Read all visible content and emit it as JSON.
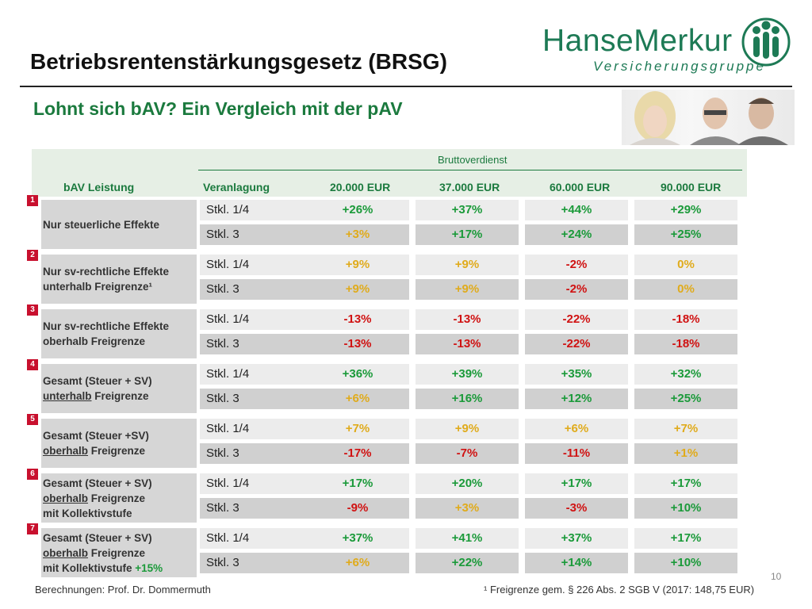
{
  "header": {
    "title": "Betriebsrentenstärkungsgesetz (BRSG)",
    "subtitle": "Lohnt sich bAV? Ein Vergleich mit der pAV",
    "logo": {
      "name": "HanseMerkur",
      "tagline": "Versicherungsgruppe",
      "color": "#1d7a55"
    }
  },
  "table": {
    "super_header": "Bruttoverdienst",
    "col_leistung": "bAV Leistung",
    "col_veranlagung": "Veranlagung",
    "salary_cols": [
      "20.000 EUR",
      "37.000 EUR",
      "60.000 EUR",
      "90.000 EUR"
    ],
    "groups": [
      {
        "num": "1",
        "label_parts": [
          {
            "t": "Nur steuerliche Effekte",
            "u": false
          }
        ],
        "rows": [
          {
            "stkl": "Stkl. 1/4",
            "values": [
              "+26%",
              "+37%",
              "+44%",
              "+29%"
            ],
            "colors": [
              "green",
              "green",
              "green",
              "green"
            ]
          },
          {
            "stkl": "Stkl. 3",
            "values": [
              "+3%",
              "+17%",
              "+24%",
              "+25%"
            ],
            "colors": [
              "yellow",
              "green",
              "green",
              "green"
            ]
          }
        ]
      },
      {
        "num": "2",
        "label_lines": [
          "Nur sv-rechtliche Effekte",
          "unterhalb Freigrenze¹"
        ],
        "rows": [
          {
            "stkl": "Stkl. 1/4",
            "values": [
              "+9%",
              "+9%",
              "-2%",
              "0%"
            ],
            "colors": [
              "yellow",
              "yellow",
              "red",
              "yellow"
            ]
          },
          {
            "stkl": "Stkl. 3",
            "values": [
              "+9%",
              "+9%",
              "-2%",
              "0%"
            ],
            "colors": [
              "yellow",
              "yellow",
              "red",
              "yellow"
            ]
          }
        ]
      },
      {
        "num": "3",
        "label_lines": [
          "Nur sv-rechtliche Effekte",
          "oberhalb Freigrenze"
        ],
        "rows": [
          {
            "stkl": "Stkl. 1/4",
            "values": [
              "-13%",
              "-13%",
              "-22%",
              "-18%"
            ],
            "colors": [
              "red",
              "red",
              "red",
              "red"
            ]
          },
          {
            "stkl": "Stkl. 3",
            "values": [
              "-13%",
              "-13%",
              "-22%",
              "-18%"
            ],
            "colors": [
              "red",
              "red",
              "red",
              "red"
            ]
          }
        ]
      },
      {
        "num": "4",
        "label_lines": [
          "Gesamt (Steuer + SV)",
          "unterhalb",
          "Freigrenze"
        ],
        "rows": [
          {
            "stkl": "Stkl. 1/4",
            "values": [
              "+36%",
              "+39%",
              "+35%",
              "+32%"
            ],
            "colors": [
              "green",
              "green",
              "green",
              "green"
            ]
          },
          {
            "stkl": "Stkl. 3",
            "values": [
              "+6%",
              "+16%",
              "+12%",
              "+25%"
            ],
            "colors": [
              "yellow",
              "green",
              "green",
              "green"
            ]
          }
        ]
      },
      {
        "num": "5",
        "label_lines": [
          "Gesamt (Steuer +SV)",
          "oberhalb",
          "Freigrenze"
        ],
        "rows": [
          {
            "stkl": "Stkl. 1/4",
            "values": [
              "+7%",
              "+9%",
              "+6%",
              "+7%"
            ],
            "colors": [
              "yellow",
              "yellow",
              "yellow",
              "yellow"
            ]
          },
          {
            "stkl": "Stkl. 3",
            "values": [
              "-17%",
              "-7%",
              "-11%",
              "+1%"
            ],
            "colors": [
              "red",
              "red",
              "red",
              "yellow"
            ]
          }
        ]
      },
      {
        "num": "6",
        "label_lines": [
          "Gesamt (Steuer + SV)",
          "oberhalb",
          "Freigrenze",
          "mit Kollektivstufe"
        ],
        "rows": [
          {
            "stkl": "Stkl. 1/4",
            "values": [
              "+17%",
              "+20%",
              "+17%",
              "+17%"
            ],
            "colors": [
              "green",
              "green",
              "green",
              "green"
            ]
          },
          {
            "stkl": "Stkl. 3",
            "values": [
              "-9%",
              "+3%",
              "-3%",
              "+10%"
            ],
            "colors": [
              "red",
              "yellow",
              "red",
              "green"
            ]
          }
        ]
      },
      {
        "num": "7",
        "label_lines": [
          "Gesamt (Steuer + SV)",
          "oberhalb",
          "Freigrenze",
          "mit Kollektivstufe",
          "+15%"
        ],
        "rows": [
          {
            "stkl": "Stkl. 1/4",
            "values": [
              "+37%",
              "+41%",
              "+37%",
              "+17%"
            ],
            "colors": [
              "green",
              "green",
              "green",
              "green"
            ]
          },
          {
            "stkl": "Stkl. 3",
            "values": [
              "+6%",
              "+22%",
              "+14%",
              "+10%"
            ],
            "colors": [
              "yellow",
              "green",
              "green",
              "green"
            ]
          }
        ]
      }
    ]
  },
  "footer": {
    "left": "Berechnungen: Prof. Dr. Dommermuth",
    "right": "¹ Freigrenze gem. § 226 Abs. 2 SGB V (2017: 148,75 EUR)",
    "page": "10"
  },
  "colors": {
    "green": "#1b9a3a",
    "yellow": "#e0ab1b",
    "red": "#d01212",
    "brand_green": "#1b7a3e",
    "marker_red": "#c8102e"
  }
}
